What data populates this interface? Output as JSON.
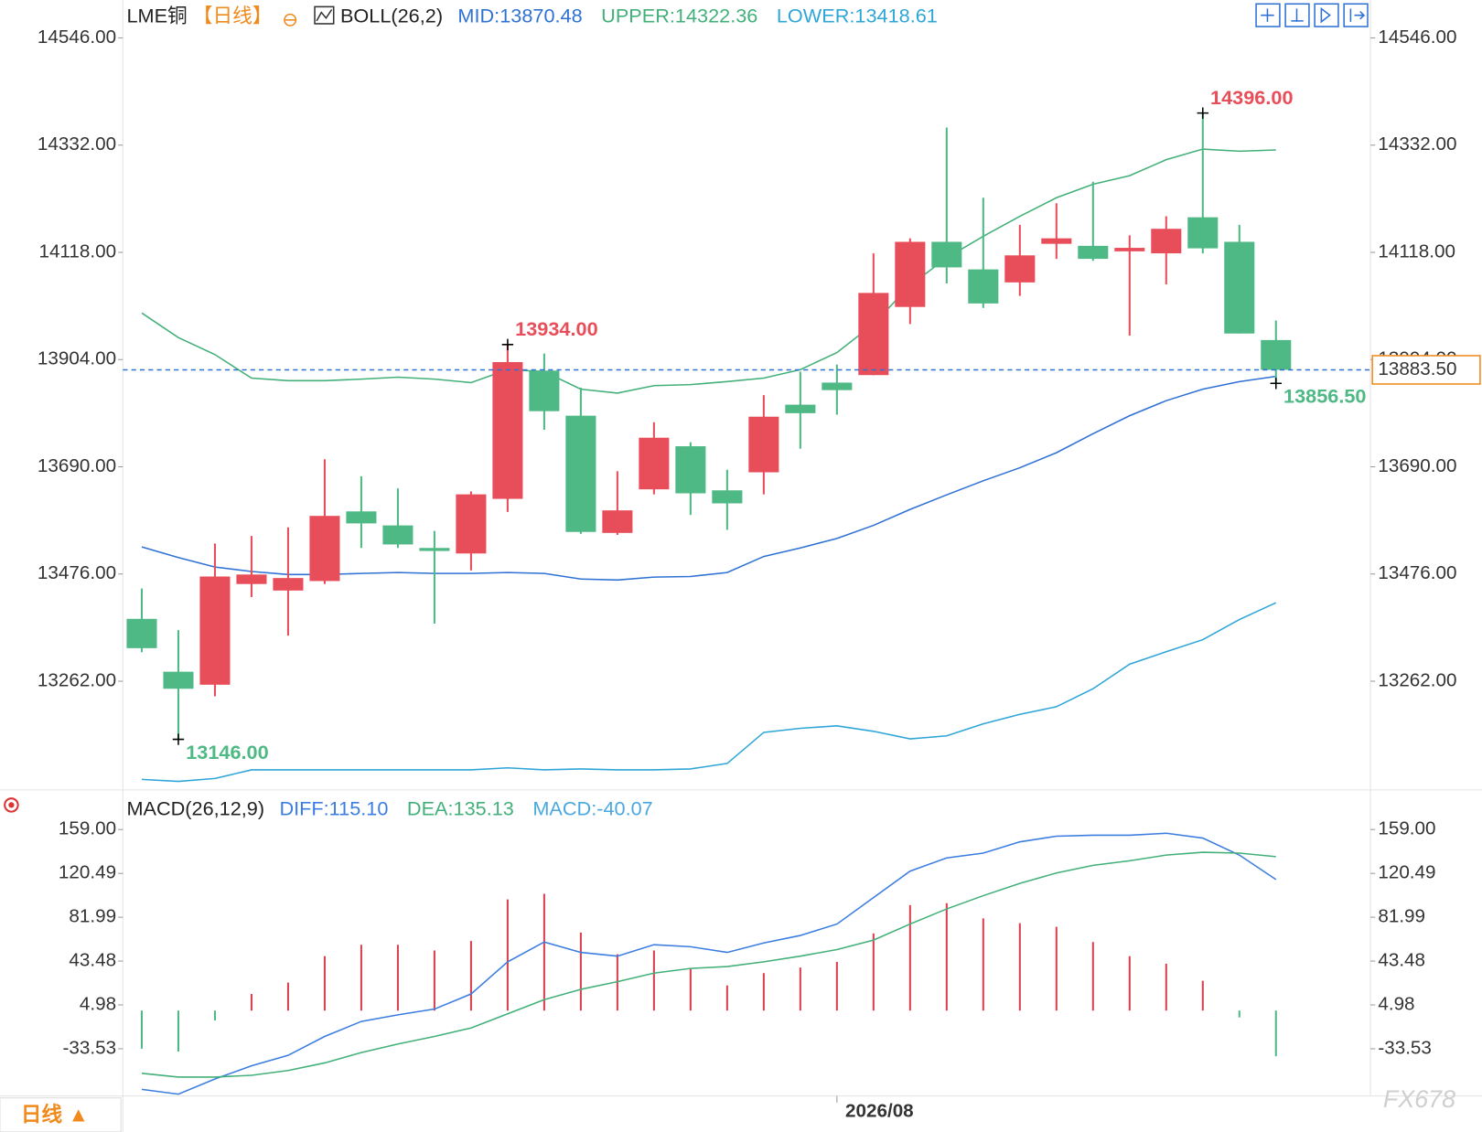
{
  "chart_data": [
    {
      "type": "candlestick",
      "title": "LME铜",
      "period": "【日线】",
      "indicator_label": "BOLL(26,2)",
      "categories": [
        null,
        null,
        null,
        null,
        null,
        null,
        null,
        null,
        null,
        null,
        null,
        null,
        null,
        null,
        null,
        null,
        null,
        null,
        null,
        "2026/08",
        null,
        null,
        null,
        null,
        null,
        null,
        null,
        null,
        null,
        null,
        null,
        null
      ],
      "open": [
        13386.5,
        13281,
        13255,
        13456,
        13443,
        13462,
        13601,
        13573,
        13528,
        13517,
        13626,
        13882,
        13792,
        13558,
        13645,
        13731,
        13643,
        13679,
        13814,
        13858,
        13873,
        14009,
        14139,
        14084,
        14058,
        14135,
        14131,
        14120,
        14116,
        14188,
        14139,
        13943
      ],
      "high": [
        13447,
        13364,
        13537,
        13552,
        13569,
        13705,
        13671,
        13647,
        13562,
        13641,
        13934,
        13916,
        13848,
        13681,
        13779,
        13739,
        13684,
        13833,
        13880,
        13894,
        14116,
        14146,
        14367,
        14227,
        14173,
        14216,
        14259,
        14152,
        14190,
        14396,
        14173,
        13982
      ],
      "low": [
        13320,
        13146,
        13232,
        13430,
        13353,
        13456,
        13528,
        13528,
        13377,
        13483,
        13600,
        13764,
        13556,
        13554,
        13635,
        13594,
        13564,
        13635,
        13726,
        13794,
        13873,
        13975,
        14056,
        14007,
        14031,
        14105,
        14101,
        13952,
        14054,
        14116,
        13956,
        13856.5
      ],
      "close": [
        13328,
        13247,
        13471,
        13475,
        13468,
        13592,
        13577,
        13535,
        13522,
        13635,
        13899,
        13801,
        13560,
        13603,
        13748,
        13637,
        13617,
        13790,
        13797,
        13843,
        14037,
        14139,
        14088,
        14016,
        14112,
        14146,
        14105,
        14127,
        14165,
        14126,
        13956,
        13883.5
      ],
      "up_color": "#e84e5a",
      "down_color": "#4fb985",
      "series": [
        {
          "name": "MID:13870.48",
          "color": "#2f72d4",
          "values": [
            13530,
            13509,
            13490,
            13481,
            13475,
            13475,
            13477,
            13479,
            13477,
            13477,
            13479,
            13477,
            13466,
            13464,
            13470,
            13471,
            13479,
            13511,
            13528,
            13547,
            13573,
            13605,
            13634,
            13662,
            13688,
            13718,
            13756,
            13792,
            13822,
            13845,
            13860,
            13870.48
          ]
        },
        {
          "name": "UPPER:14322.36",
          "color": "#43b07a",
          "values": [
            13997,
            13948,
            13914,
            13867,
            13862,
            13862,
            13865,
            13869,
            13865,
            13858,
            13884,
            13880,
            13845,
            13837,
            13852,
            13854,
            13860,
            13867,
            13884,
            13918,
            13975,
            14052,
            14107,
            14150,
            14190,
            14227,
            14254,
            14271,
            14303,
            14324,
            14320,
            14322.36
          ]
        },
        {
          "name": "LOWER:13418.61",
          "color": "#2fa6d8",
          "values": [
            13066,
            13062,
            13068,
            13085,
            13085,
            13085,
            13085,
            13085,
            13085,
            13085,
            13089,
            13085,
            13087,
            13085,
            13085,
            13087,
            13098,
            13160,
            13168,
            13173,
            13162,
            13147,
            13153,
            13177,
            13196,
            13211,
            13247,
            13296,
            13321,
            13345,
            13385,
            13418.61
          ]
        }
      ],
      "ylim": [
        13047,
        14612
      ],
      "yticks": [
        {
          "value": 13262,
          "label": "13262.00"
        },
        {
          "value": 13476,
          "label": "13476.00"
        },
        {
          "value": 13690,
          "label": "13690.00"
        },
        {
          "value": 13904,
          "label": "13904.00"
        },
        {
          "value": 14118,
          "label": "14118.00"
        },
        {
          "value": 14332,
          "label": "14332.00"
        },
        {
          "value": 14546,
          "label": "14546.00"
        }
      ],
      "grid": false,
      "annotations": [
        {
          "value": 14396,
          "label": "14396.00"
        },
        {
          "value": 13934,
          "label": "13934.00"
        },
        {
          "value": 13146,
          "label": "13146.00"
        },
        {
          "value": 13856.5,
          "label": "13856.50"
        }
      ],
      "last_price": {
        "value": 13883.5,
        "label": "13883.50",
        "color": "#f08a1c"
      },
      "period_button": "日线 ▲",
      "watermark": "FX678"
    },
    {
      "type": "macd",
      "title": "MACD(26,12,9)",
      "series": [
        {
          "name": "DIFF:115.10",
          "color": "#3b7de0",
          "values": [
            -69.2,
            -73.4,
            -60.1,
            -48.5,
            -39.3,
            -22.7,
            -9.5,
            -3.7,
            1.3,
            14.6,
            42.8,
            60.2,
            51.1,
            47.8,
            57.8,
            56.1,
            51.1,
            59.4,
            66.0,
            76.0,
            99.2,
            122.5,
            134.1,
            138.3,
            148.2,
            153.2,
            154.0,
            154.0,
            155.7,
            151.5,
            136.6,
            115.1
          ]
        },
        {
          "name": "DEA:135.13",
          "color": "#43b07a",
          "values": [
            -55.1,
            -58.4,
            -58.4,
            -56.8,
            -52.6,
            -46.0,
            -36.9,
            -29.4,
            -22.7,
            -15.3,
            -2.8,
            9.6,
            18.7,
            25.4,
            32.9,
            37.0,
            38.7,
            42.8,
            47.8,
            53.6,
            61.9,
            76.0,
            89.3,
            100.9,
            111.7,
            120.8,
            127.5,
            131.6,
            136.6,
            139.1,
            138.3,
            135.13
          ]
        },
        {
          "name": "MACD:-40.07",
          "type": "bar",
          "color": "#4aa8e0",
          "up_color": "#d9424e",
          "down_color": "#4fb985",
          "values": [
            -33.5,
            -36.0,
            -8.6,
            14.6,
            24.6,
            47.8,
            57.8,
            57.8,
            52.8,
            61.1,
            97.6,
            102.6,
            68.5,
            49.5,
            52.8,
            37.0,
            22.1,
            32.9,
            37.8,
            42.8,
            67.7,
            92.6,
            94.3,
            81.0,
            76.8,
            73.5,
            60.2,
            47.8,
            41.2,
            26.2,
            -6,
            -40.07
          ]
        }
      ],
      "ylim": [
        -75,
        190.5
      ],
      "yticks": [
        {
          "value": -33.53,
          "label": "-33.53"
        },
        4.98,
        43.48,
        81.99,
        {
          "value": 120.49,
          "label": "120.49"
        },
        {
          "value": 159,
          "label": "159.00"
        }
      ],
      "grid": false
    }
  ]
}
